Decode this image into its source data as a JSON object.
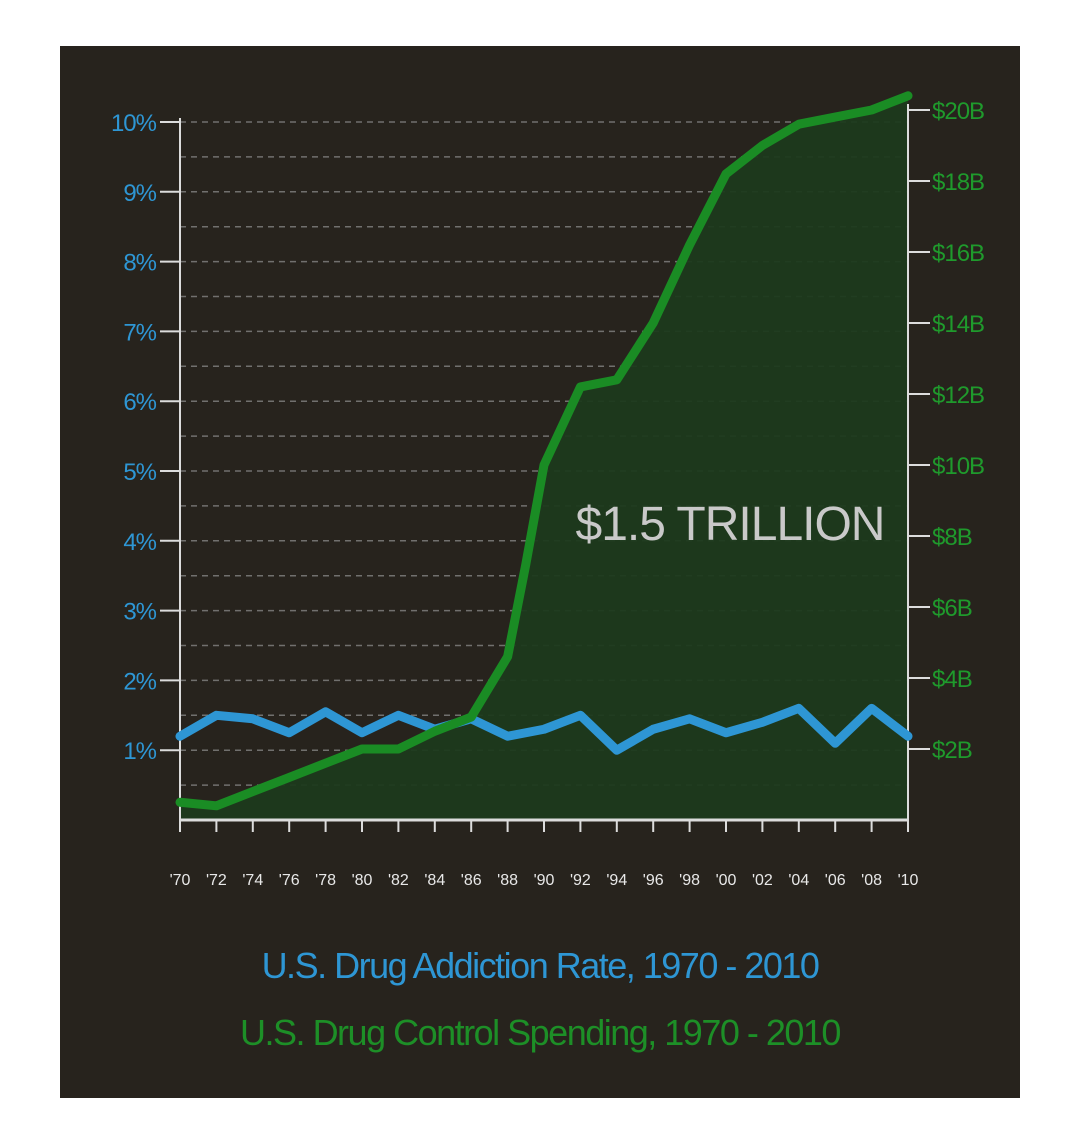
{
  "colors": {
    "background": "#27231d",
    "addiction": "#2e96d4",
    "spending": "#1a8c24",
    "area": "#1c3a1c",
    "grid": "#8a8a8a",
    "axis": "#dcdcdc",
    "annotation": "#c9c9c9"
  },
  "chart_data": {
    "type": "line",
    "annotation": "$1.5 TRILLION",
    "titles": [
      "U.S. Drug Addiction Rate, 1970 - 2010",
      "U.S. Drug Control Spending, 1970 - 2010"
    ],
    "x": [
      1970,
      1972,
      1974,
      1976,
      1978,
      1980,
      1982,
      1984,
      1986,
      1988,
      1990,
      1992,
      1994,
      1996,
      1998,
      2000,
      2002,
      2004,
      2006,
      2008,
      2010
    ],
    "x_tick_labels": [
      "'70",
      "'72",
      "'74",
      "'76",
      "'78",
      "'80",
      "'82",
      "'84",
      "'86",
      "'88",
      "'90",
      "'92",
      "'94",
      "'96",
      "'98",
      "'00",
      "'02",
      "'04",
      "'06",
      "'08",
      "'10"
    ],
    "y_left": {
      "ticks": [
        1,
        2,
        3,
        4,
        5,
        6,
        7,
        8,
        9,
        10
      ],
      "tick_labels": [
        "1%",
        "2%",
        "3%",
        "4%",
        "5%",
        "6%",
        "7%",
        "8%",
        "9%",
        "10%"
      ],
      "range": [
        0,
        10
      ]
    },
    "y_right": {
      "ticks": [
        2,
        4,
        6,
        8,
        10,
        12,
        14,
        16,
        18,
        20
      ],
      "tick_labels": [
        "$2B",
        "$4B",
        "$6B",
        "$8B",
        "$10B",
        "$12B",
        "$14B",
        "$16B",
        "$18B",
        "$20B"
      ],
      "range": [
        0,
        20
      ]
    },
    "grid": "dashed horizontal",
    "series": [
      {
        "axis": "left",
        "unit": "%",
        "points": [
          [
            1970,
            1.2
          ],
          [
            1972,
            1.5
          ],
          [
            1974,
            1.45
          ],
          [
            1976,
            1.25
          ],
          [
            1978,
            1.55
          ],
          [
            1980,
            1.25
          ],
          [
            1982,
            1.5
          ],
          [
            1984,
            1.3
          ],
          [
            1986,
            1.45
          ],
          [
            1988,
            1.2
          ],
          [
            1990,
            1.3
          ],
          [
            1992,
            1.5
          ],
          [
            1994,
            1.0
          ],
          [
            1996,
            1.3
          ],
          [
            1998,
            1.45
          ],
          [
            2000,
            1.25
          ],
          [
            2002,
            1.4
          ],
          [
            2004,
            1.6
          ],
          [
            2006,
            1.1
          ],
          [
            2008,
            1.6
          ],
          [
            2010,
            1.2
          ]
        ]
      },
      {
        "axis": "right",
        "unit": "$B",
        "points": [
          [
            1970,
            0.5
          ],
          [
            1972,
            0.4
          ],
          [
            1974,
            0.8
          ],
          [
            1976,
            1.2
          ],
          [
            1978,
            1.6
          ],
          [
            1980,
            2.0
          ],
          [
            1982,
            2.0
          ],
          [
            1984,
            2.5
          ],
          [
            1986,
            2.9
          ],
          [
            1988,
            4.6
          ],
          [
            1989,
            7.2
          ],
          [
            1990,
            10.0
          ],
          [
            1992,
            12.2
          ],
          [
            1994,
            12.4
          ],
          [
            1996,
            14.0
          ],
          [
            1998,
            16.2
          ],
          [
            2000,
            18.2
          ],
          [
            2002,
            19.0
          ],
          [
            2004,
            19.6
          ],
          [
            2006,
            19.8
          ],
          [
            2008,
            20.0
          ],
          [
            2010,
            20.4
          ]
        ]
      }
    ]
  }
}
